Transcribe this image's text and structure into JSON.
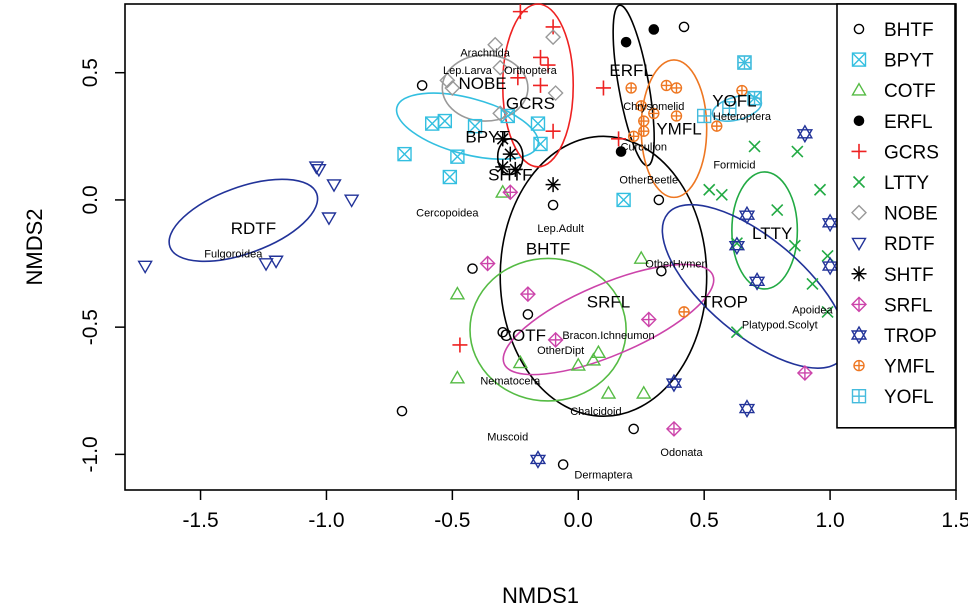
{
  "chart_data": {
    "type": "scatter",
    "xlabel": "NMDS1",
    "ylabel": "NMDS2",
    "xlim": [
      -1.8,
      1.5
    ],
    "ylim": [
      -1.14,
      0.77
    ],
    "x_ticks": [
      {
        "v": -1.5,
        "label": "-1.5"
      },
      {
        "v": -1.0,
        "label": "-1.0"
      },
      {
        "v": -0.5,
        "label": "-0.5"
      },
      {
        "v": 0.0,
        "label": "0.0"
      },
      {
        "v": 0.5,
        "label": "0.5"
      },
      {
        "v": 1.0,
        "label": "1.0"
      },
      {
        "v": 1.5,
        "label": "1.5"
      }
    ],
    "y_ticks": [
      {
        "v": -1.0,
        "label": "-1.0"
      },
      {
        "v": -0.5,
        "label": "-0.5"
      },
      {
        "v": 0.0,
        "label": "0.0"
      },
      {
        "v": 0.5,
        "label": "0.5"
      }
    ],
    "legend_position": "right",
    "series": [
      {
        "name": "BHTF",
        "color": "#000000",
        "marker": "open-circle",
        "ellipse": {
          "cx": 0.1,
          "cy": -0.3,
          "rx": 0.41,
          "ry": 0.55,
          "angle": 0
        },
        "label": {
          "x": -0.12,
          "y": -0.19
        },
        "points": [
          [
            -0.7,
            -0.83
          ],
          [
            -0.62,
            0.45
          ],
          [
            -0.42,
            -0.27
          ],
          [
            -0.3,
            -0.52
          ],
          [
            -0.1,
            -0.02
          ],
          [
            0.22,
            -0.9
          ],
          [
            0.42,
            0.68
          ],
          [
            -0.06,
            -1.04
          ],
          [
            0.33,
            -0.28
          ],
          [
            0.32,
            0.0
          ],
          [
            -0.2,
            -0.45
          ]
        ]
      },
      {
        "name": "BPYT",
        "color": "#33bfe0",
        "marker": "boxed-x",
        "ellipse": {
          "cx": -0.44,
          "cy": 0.29,
          "rx": 0.29,
          "ry": 0.11,
          "angle": 15
        },
        "label": {
          "x": -0.36,
          "y": 0.25
        },
        "points": [
          [
            -0.58,
            0.3
          ],
          [
            -0.53,
            0.31
          ],
          [
            -0.69,
            0.18
          ],
          [
            -0.48,
            0.17
          ],
          [
            -0.51,
            0.09
          ],
          [
            -0.41,
            0.29
          ],
          [
            -0.28,
            0.33
          ],
          [
            -0.15,
            0.22
          ],
          [
            -0.16,
            0.3
          ],
          [
            0.18,
            0.0
          ],
          [
            0.66,
            0.54
          ],
          [
            0.7,
            0.4
          ]
        ]
      },
      {
        "name": "COTF",
        "color": "#55bb44",
        "marker": "open-triangle",
        "ellipse": {
          "cx": -0.12,
          "cy": -0.51,
          "rx": 0.31,
          "ry": 0.28,
          "angle": 0
        },
        "label": {
          "x": -0.22,
          "y": -0.53
        },
        "points": [
          [
            -0.48,
            -0.37
          ],
          [
            -0.48,
            -0.7
          ],
          [
            -0.23,
            -0.64
          ],
          [
            0.08,
            -0.6
          ],
          [
            0.0,
            -0.65
          ],
          [
            0.12,
            -0.76
          ],
          [
            0.26,
            -0.76
          ],
          [
            0.25,
            -0.23
          ],
          [
            -0.3,
            0.03
          ],
          [
            0.06,
            -0.63
          ]
        ]
      },
      {
        "name": "ERFL",
        "color": "#000000",
        "marker": "filled-circle",
        "ellipse": {
          "cx": 0.22,
          "cy": 0.45,
          "rx": 0.06,
          "ry": 0.32,
          "angle": -10
        },
        "label": {
          "x": 0.21,
          "y": 0.51
        },
        "points": [
          [
            0.19,
            0.62
          ],
          [
            0.3,
            0.67
          ],
          [
            0.17,
            0.19
          ]
        ]
      },
      {
        "name": "GCRS",
        "color": "#ee2222",
        "marker": "plus",
        "ellipse": {
          "cx": -0.16,
          "cy": 0.45,
          "rx": 0.14,
          "ry": 0.32,
          "angle": 0
        },
        "label": {
          "x": -0.19,
          "y": 0.38
        },
        "points": [
          [
            -0.23,
            0.74
          ],
          [
            -0.1,
            0.68
          ],
          [
            -0.15,
            0.56
          ],
          [
            -0.12,
            0.53
          ],
          [
            -0.24,
            0.48
          ],
          [
            -0.15,
            0.45
          ],
          [
            -0.1,
            0.27
          ],
          [
            0.1,
            0.44
          ],
          [
            0.16,
            0.24
          ],
          [
            -0.47,
            -0.57
          ]
        ]
      },
      {
        "name": "LTTY",
        "color": "#22aa44",
        "marker": "x",
        "ellipse": {
          "cx": 0.74,
          "cy": -0.12,
          "rx": 0.13,
          "ry": 0.23,
          "angle": 0
        },
        "label": {
          "x": 0.77,
          "y": -0.13
        },
        "points": [
          [
            0.7,
            0.21
          ],
          [
            0.87,
            0.19
          ],
          [
            0.52,
            0.04
          ],
          [
            0.57,
            0.02
          ],
          [
            0.79,
            -0.04
          ],
          [
            0.96,
            0.04
          ],
          [
            0.86,
            -0.18
          ],
          [
            0.63,
            -0.17
          ],
          [
            0.63,
            -0.52
          ],
          [
            0.93,
            -0.33
          ],
          [
            0.99,
            -0.22
          ],
          [
            0.99,
            -0.44
          ]
        ]
      },
      {
        "name": "NOBE",
        "color": "#999999",
        "marker": "open-diamond",
        "ellipse": {
          "cx": -0.37,
          "cy": 0.44,
          "rx": 0.17,
          "ry": 0.13,
          "angle": 0
        },
        "label": {
          "x": -0.38,
          "y": 0.46
        },
        "points": [
          [
            -0.52,
            0.47
          ],
          [
            -0.33,
            0.61
          ],
          [
            -0.1,
            0.64
          ],
          [
            -0.09,
            0.42
          ],
          [
            -0.31,
            0.52
          ],
          [
            -0.5,
            0.44
          ],
          [
            -0.31,
            0.34
          ]
        ]
      },
      {
        "name": "RDTF",
        "color": "#223399",
        "marker": "open-triangle-down",
        "ellipse": {
          "cx": -1.33,
          "cy": -0.08,
          "rx": 0.31,
          "ry": 0.13,
          "angle": -20
        },
        "label": {
          "x": -1.29,
          "y": -0.11
        },
        "points": [
          [
            -1.72,
            -0.26
          ],
          [
            -1.04,
            0.13
          ],
          [
            -1.03,
            0.12
          ],
          [
            -0.97,
            0.06
          ],
          [
            -0.9,
            0.0
          ],
          [
            -0.99,
            -0.07
          ],
          [
            -1.24,
            -0.25
          ],
          [
            -1.2,
            -0.24
          ]
        ]
      },
      {
        "name": "SHTF",
        "color": "#000000",
        "marker": "asterisk",
        "ellipse": {
          "cx": -0.27,
          "cy": 0.17,
          "rx": 0.05,
          "ry": 0.07,
          "angle": 0
        },
        "label": {
          "x": -0.27,
          "y": 0.1
        },
        "points": [
          [
            -0.3,
            0.24
          ],
          [
            -0.27,
            0.18
          ],
          [
            -0.3,
            0.13
          ],
          [
            -0.25,
            0.12
          ],
          [
            -0.1,
            0.06
          ]
        ]
      },
      {
        "name": "SRFL",
        "color": "#cc44aa",
        "marker": "diamond-plus",
        "ellipse": {
          "cx": 0.12,
          "cy": -0.47,
          "rx": 0.45,
          "ry": 0.14,
          "angle": -23
        },
        "label": {
          "x": 0.12,
          "y": -0.4
        },
        "points": [
          [
            -0.27,
            0.03
          ],
          [
            -0.36,
            -0.25
          ],
          [
            -0.2,
            -0.37
          ],
          [
            -0.09,
            -0.55
          ],
          [
            0.28,
            -0.47
          ],
          [
            0.38,
            -0.9
          ],
          [
            0.9,
            -0.68
          ]
        ]
      },
      {
        "name": "TROP",
        "color": "#223399",
        "marker": "hexagram",
        "ellipse": {
          "cx": 0.7,
          "cy": -0.34,
          "rx": 0.45,
          "ry": 0.19,
          "angle": 40
        },
        "label": {
          "x": 0.58,
          "y": -0.4
        },
        "points": [
          [
            0.67,
            -0.06
          ],
          [
            0.63,
            -0.18
          ],
          [
            0.71,
            -0.32
          ],
          [
            0.9,
            0.26
          ],
          [
            1.0,
            -0.09
          ],
          [
            1.0,
            -0.26
          ],
          [
            0.38,
            -0.72
          ],
          [
            0.67,
            -0.82
          ],
          [
            -0.16,
            -1.02
          ]
        ]
      },
      {
        "name": "YMFL",
        "color": "#ee7722",
        "marker": "circle-plus",
        "ellipse": {
          "cx": 0.38,
          "cy": 0.28,
          "rx": 0.13,
          "ry": 0.27,
          "angle": 0
        },
        "label": {
          "x": 0.4,
          "y": 0.28
        },
        "points": [
          [
            0.21,
            0.44
          ],
          [
            0.35,
            0.45
          ],
          [
            0.39,
            0.44
          ],
          [
            0.25,
            0.37
          ],
          [
            0.3,
            0.34
          ],
          [
            0.39,
            0.33
          ],
          [
            0.26,
            0.31
          ],
          [
            0.26,
            0.27
          ],
          [
            0.55,
            0.29
          ],
          [
            0.65,
            0.43
          ],
          [
            0.22,
            0.25
          ],
          [
            0.42,
            -0.44
          ]
        ]
      },
      {
        "name": "YOFL",
        "color": "#44bbdd",
        "marker": "boxed-plus",
        "ellipse": {
          "cx": 0.63,
          "cy": 0.36,
          "rx": 0.1,
          "ry": 0.045,
          "angle": -15
        },
        "label": {
          "x": 0.62,
          "y": 0.39
        },
        "points": [
          [
            0.66,
            0.54
          ],
          [
            0.7,
            0.4
          ],
          [
            0.5,
            0.33
          ],
          [
            0.6,
            0.36
          ]
        ]
      }
    ],
    "annotations": [
      {
        "text": "Arachnida",
        "x": -0.37,
        "y": 0.58
      },
      {
        "text": "Lep.Larva",
        "x": -0.44,
        "y": 0.51
      },
      {
        "text": "Orthoptera",
        "x": -0.19,
        "y": 0.51
      },
      {
        "text": "Chrysomelid",
        "x": 0.3,
        "y": 0.37
      },
      {
        "text": "Heteroptera",
        "x": 0.65,
        "y": 0.33
      },
      {
        "text": "Curculion",
        "x": 0.26,
        "y": 0.21
      },
      {
        "text": "Formicid",
        "x": 0.62,
        "y": 0.14
      },
      {
        "text": "OtherBeetle",
        "x": 0.28,
        "y": 0.08
      },
      {
        "text": "Cercopoidea",
        "x": -0.52,
        "y": -0.05
      },
      {
        "text": "Fulgoroidea",
        "x": -1.37,
        "y": -0.21
      },
      {
        "text": "Lep.Adult",
        "x": -0.07,
        "y": -0.11
      },
      {
        "text": "OtherHymen",
        "x": 0.39,
        "y": -0.25
      },
      {
        "text": "Apoidea",
        "x": 0.93,
        "y": -0.43
      },
      {
        "text": "Platypod.Scolyt",
        "x": 0.8,
        "y": -0.49
      },
      {
        "text": "Bracon.Ichneumon",
        "x": 0.12,
        "y": -0.53
      },
      {
        "text": "OtherDipt",
        "x": -0.07,
        "y": -0.59
      },
      {
        "text": "Nematocera",
        "x": -0.27,
        "y": -0.71
      },
      {
        "text": "Chalcidoid",
        "x": 0.07,
        "y": -0.83
      },
      {
        "text": "Muscoid",
        "x": -0.28,
        "y": -0.93
      },
      {
        "text": "Odonata",
        "x": 0.41,
        "y": -0.99
      },
      {
        "text": "Dermaptera",
        "x": 0.1,
        "y": -1.08
      }
    ]
  }
}
